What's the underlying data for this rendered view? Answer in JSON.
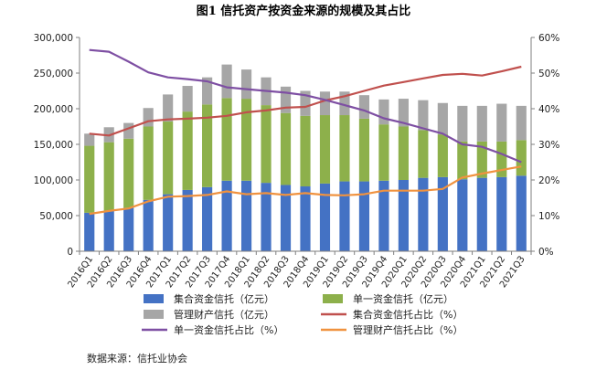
{
  "figure_title": "图1    信托资产按资金来源的规模及其占比",
  "source_note": "数据来源：信托业协会",
  "colors": {
    "bar_pooled": "#4472C4",
    "bar_single": "#8DB04B",
    "bar_managed": "#A6A6A6",
    "line_pooled": "#C0504D",
    "line_single": "#7E4FA3",
    "line_managed": "#F0923F",
    "axis": "#7f7f7f"
  },
  "chart_data": {
    "type": "bar",
    "stacked": true,
    "title": "信托资产按资金来源的规模及其占比",
    "categories": [
      "2016Q1",
      "2016Q2",
      "2016Q3",
      "2016Q4",
      "2017Q1",
      "2017Q2",
      "2017Q3",
      "2017Q4",
      "2018Q1",
      "2018Q2",
      "2018Q3",
      "2018Q4",
      "2019Q1",
      "2019Q2",
      "2019Q3",
      "2019Q4",
      "2020Q1",
      "2020Q2",
      "2020Q3",
      "2020Q4",
      "2021Q1",
      "2021Q2",
      "2021Q3"
    ],
    "y_left": {
      "ylim": [
        0,
        300000
      ],
      "ticks": [
        "0",
        "50,000",
        "100,000",
        "150,000",
        "200,000",
        "250,000",
        "300,000"
      ]
    },
    "y_right": {
      "ylim": [
        0,
        60
      ],
      "ticks": [
        "0%",
        "10%",
        "20%",
        "30%",
        "40%",
        "50%",
        "60%"
      ]
    },
    "bar_series": [
      {
        "name": "集合资金信托（亿元）",
        "color_key": "bar_pooled",
        "values": [
          54000,
          57000,
          61000,
          72000,
          80000,
          86000,
          90000,
          99000,
          99000,
          96000,
          93000,
          91000,
          95000,
          98000,
          98000,
          99000,
          100000,
          103000,
          104000,
          101000,
          103000,
          104000,
          106000
        ]
      },
      {
        "name": "单一资金信托（亿元）",
        "color_key": "bar_single",
        "values": [
          94000,
          96000,
          97000,
          103000,
          102000,
          110000,
          116000,
          116000,
          115000,
          109000,
          101000,
          99000,
          96000,
          93000,
          88000,
          79000,
          75000,
          67000,
          60000,
          53000,
          51000,
          50000,
          50000
        ]
      },
      {
        "name": "管理财产信托（亿元）",
        "color_key": "bar_managed",
        "values": [
          17000,
          21000,
          22000,
          26000,
          38000,
          36000,
          38000,
          47000,
          41000,
          39000,
          37000,
          35000,
          33000,
          33000,
          33000,
          35000,
          39000,
          42000,
          44000,
          50000,
          50000,
          53000,
          48000
        ]
      }
    ],
    "line_series": [
      {
        "name": "集合资金信托占比（%）",
        "color_key": "line_pooled",
        "values": [
          33.0,
          32.5,
          34.5,
          36.5,
          37.0,
          37.2,
          37.5,
          38.0,
          39.0,
          39.5,
          40.3,
          40.5,
          42.3,
          43.5,
          45.0,
          46.5,
          47.5,
          48.5,
          49.5,
          49.8,
          49.3,
          50.5,
          51.8
        ]
      },
      {
        "name": "单一资金信托占比（%）",
        "color_key": "line_single",
        "values": [
          56.5,
          56.0,
          53.2,
          50.2,
          48.8,
          48.3,
          47.7,
          46.0,
          45.5,
          45.0,
          44.5,
          43.8,
          42.5,
          41.0,
          39.5,
          37.3,
          36.0,
          34.5,
          33.0,
          30.0,
          29.3,
          27.3,
          25.0
        ]
      },
      {
        "name": "管理财产信托占比（%）",
        "color_key": "line_managed",
        "values": [
          10.5,
          11.3,
          12.0,
          14.0,
          15.3,
          15.5,
          15.8,
          16.8,
          16.0,
          16.3,
          15.8,
          16.3,
          15.8,
          15.7,
          16.0,
          17.0,
          17.0,
          17.0,
          17.5,
          20.7,
          21.8,
          22.8,
          23.8
        ]
      }
    ],
    "legend": {
      "placement": "bottom",
      "entries": [
        "集合资金信托（亿元）",
        "单一资金信托（亿元）",
        "管理财产信托（亿元）",
        "集合资金信托占比（%）",
        "单一资金信托占比（%）",
        "管理财产信托占比（%）"
      ]
    }
  }
}
